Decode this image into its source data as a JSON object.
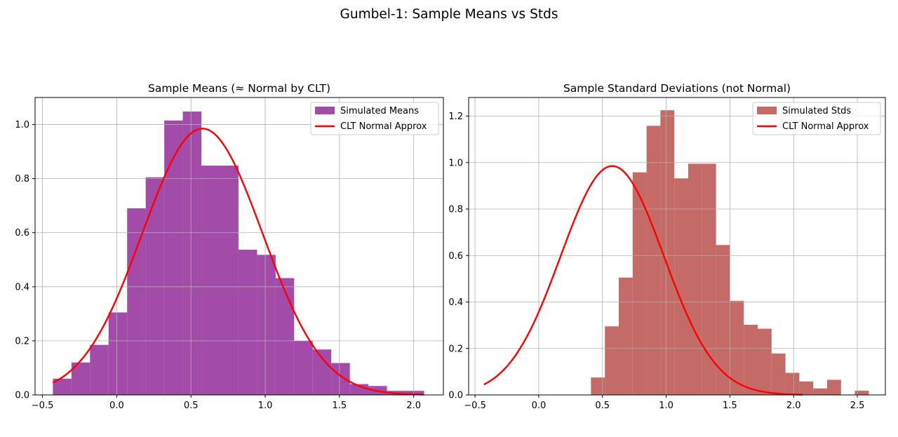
{
  "suptitle": "Gumbel-1: Sample Means vs Stds",
  "chart_data": [
    {
      "type": "bar",
      "title": "Sample Means (≈ Normal by CLT)",
      "xlabel": "",
      "ylabel": "",
      "xlim": [
        -0.55,
        2.2
      ],
      "ylim": [
        0,
        1.1
      ],
      "xticks": [
        -0.5,
        0.0,
        0.5,
        1.0,
        1.5,
        2.0
      ],
      "xtick_labels": [
        "−0.5",
        "0.0",
        "0.5",
        "1.0",
        "1.5",
        "2.0"
      ],
      "yticks": [
        0.0,
        0.2,
        0.4,
        0.6,
        0.8,
        1.0
      ],
      "ytick_labels": [
        "0.0",
        "0.2",
        "0.4",
        "0.6",
        "0.8",
        "1.0"
      ],
      "grid": true,
      "legend_position": "top-right",
      "bar_color": "#8b1e93",
      "bar_alpha": 0.8,
      "histogram": {
        "name": "Simulated Means",
        "bin_edges": [
          -0.43,
          -0.305,
          -0.18,
          -0.055,
          0.07,
          0.195,
          0.32,
          0.445,
          0.57,
          0.695,
          0.82,
          0.945,
          1.07,
          1.195,
          1.32,
          1.445,
          1.57,
          1.695,
          1.82,
          1.945,
          2.07
        ],
        "values": [
          0.06,
          0.12,
          0.185,
          0.305,
          0.69,
          0.805,
          1.015,
          1.048,
          0.848,
          0.848,
          0.537,
          0.518,
          0.432,
          0.2,
          0.168,
          0.118,
          0.04,
          0.033,
          0.015,
          0.015
        ]
      },
      "curve": {
        "name": "CLT Normal Approx",
        "color": "#ff0000",
        "mean": 0.577,
        "std": 0.405,
        "x_range": [
          -0.43,
          2.07
        ]
      }
    },
    {
      "type": "bar",
      "title": "Sample Standard Deviations (not Normal)",
      "xlabel": "",
      "ylabel": "",
      "xlim": [
        -0.55,
        2.72
      ],
      "ylim": [
        0,
        1.28
      ],
      "xticks": [
        -0.5,
        0.0,
        0.5,
        1.0,
        1.5,
        2.0,
        2.5
      ],
      "xtick_labels": [
        "−0.5",
        "0.0",
        "0.5",
        "1.0",
        "1.5",
        "2.0",
        "2.5"
      ],
      "yticks": [
        0.0,
        0.2,
        0.4,
        0.6,
        0.8,
        1.0,
        1.2
      ],
      "ytick_labels": [
        "0.0",
        "0.2",
        "0.4",
        "0.6",
        "0.8",
        "1.0",
        "1.2"
      ],
      "grid": true,
      "legend_position": "top-right",
      "bar_color": "#b03a36",
      "bar_alpha": 0.75,
      "histogram": {
        "name": "Simulated Stds",
        "bin_edges": [
          0.41,
          0.519,
          0.628,
          0.737,
          0.846,
          0.955,
          1.064,
          1.173,
          1.282,
          1.391,
          1.5,
          1.609,
          1.718,
          1.827,
          1.936,
          2.045,
          2.154,
          2.263,
          2.372,
          2.481,
          2.59
        ],
        "values": [
          0.075,
          0.295,
          0.505,
          0.958,
          1.158,
          1.225,
          0.932,
          0.995,
          0.995,
          0.645,
          0.405,
          0.302,
          0.285,
          0.178,
          0.095,
          0.058,
          0.028,
          0.065,
          0.0,
          0.018
        ]
      },
      "curve": {
        "name": "CLT Normal Approx",
        "color": "#ff0000",
        "mean": 0.577,
        "std": 0.405,
        "x_range": [
          -0.43,
          2.07
        ]
      }
    }
  ]
}
